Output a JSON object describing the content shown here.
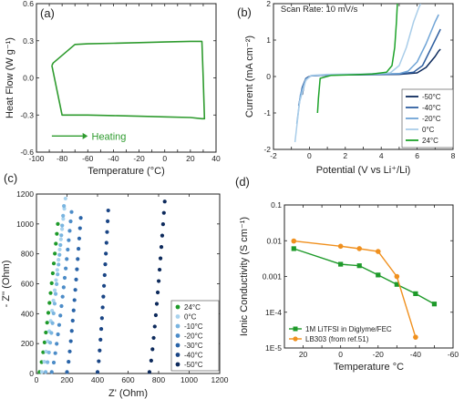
{
  "chart_data": [
    {
      "id": "a",
      "panel_label": "(a)",
      "type": "line",
      "xlabel": "Temperature (°C)",
      "ylabel": "Heat Flow (W g⁻¹)",
      "xlim": [
        -100,
        40
      ],
      "ylim": [
        -0.6,
        0.6
      ],
      "x_ticks": [
        -100,
        -90,
        -80,
        -70,
        -60,
        -50,
        -40,
        -30,
        -20,
        -10,
        0,
        10,
        20,
        30,
        40
      ],
      "y_ticks": [
        -0.6,
        -0.3,
        0.0,
        0.3,
        0.6
      ],
      "y_tick_labels": [
        "-0.6",
        "-0.3",
        "0.0",
        "0.3",
        "0.6"
      ],
      "color": "#2e9b2e",
      "annotation": "Heating",
      "series": [
        {
          "x": [
            -88,
            -87,
            -70,
            -60,
            -40,
            -20,
            0,
            20,
            29,
            30,
            31,
            29,
            20,
            0,
            -20,
            -40,
            -60,
            -80,
            -88
          ],
          "y": [
            0.1,
            0.12,
            0.27,
            0.275,
            0.28,
            0.285,
            0.29,
            0.295,
            0.295,
            0.0,
            -0.33,
            -0.33,
            -0.32,
            -0.315,
            -0.31,
            -0.305,
            -0.3,
            -0.3,
            0.1
          ]
        }
      ]
    },
    {
      "id": "b",
      "panel_label": "(b)",
      "type": "line",
      "xlabel": "Potential (V vs Li⁺/Li)",
      "ylabel": "Current (mA cm⁻²)",
      "xlim": [
        -2,
        8
      ],
      "ylim": [
        -2,
        2
      ],
      "x_ticks": [
        -2,
        0,
        2,
        4,
        6,
        8
      ],
      "y_ticks": [
        -2,
        -1,
        0,
        1,
        2
      ],
      "annotation": "Scan Rate: 10 mV/s",
      "legend_position": "bottom-right",
      "series": [
        {
          "name": "-50°C",
          "color": "#0d2a5c",
          "x": [
            -0.4,
            -0.25,
            -0.1,
            0.1,
            1,
            3,
            5,
            6,
            6.5,
            7,
            7.2,
            7.3
          ],
          "y": [
            -0.5,
            -0.15,
            -0.02,
            0.02,
            0.04,
            0.05,
            0.06,
            0.1,
            0.25,
            0.55,
            0.7,
            0.75
          ]
        },
        {
          "name": "-40°C",
          "color": "#2f5fa0",
          "x": [
            -0.6,
            -0.4,
            -0.2,
            0.1,
            1,
            3,
            5,
            5.8,
            6.3,
            6.8,
            7.1,
            7.3
          ],
          "y": [
            -0.8,
            -0.3,
            -0.05,
            0.02,
            0.04,
            0.05,
            0.07,
            0.12,
            0.3,
            0.8,
            1.1,
            1.3
          ]
        },
        {
          "name": "-20°C",
          "color": "#6fa4d6",
          "x": [
            -0.7,
            -0.5,
            -0.2,
            0.1,
            1,
            3,
            5,
            5.5,
            6,
            6.5,
            7,
            7.2
          ],
          "y": [
            -1.3,
            -0.5,
            -0.08,
            0.02,
            0.05,
            0.06,
            0.08,
            0.15,
            0.4,
            0.9,
            1.5,
            1.7
          ]
        },
        {
          "name": "0°C",
          "color": "#a9cde9",
          "x": [
            -0.8,
            -0.55,
            -0.2,
            0.1,
            1,
            3,
            4.5,
            5,
            5.4,
            5.8,
            6.1,
            6.2
          ],
          "y": [
            -1.8,
            -0.7,
            -0.1,
            0.03,
            0.06,
            0.07,
            0.1,
            0.3,
            0.8,
            1.5,
            1.9,
            2.0
          ]
        },
        {
          "name": "24°C",
          "color": "#1ea32a",
          "x": [
            0.45,
            0.5,
            0.6,
            1.2,
            2.5,
            3.5,
            4.3,
            4.6,
            4.75,
            4.85,
            4.9
          ],
          "y": [
            -1.0,
            -0.6,
            -0.05,
            0.03,
            0.05,
            0.07,
            0.12,
            0.3,
            0.8,
            1.5,
            2.0
          ]
        }
      ]
    },
    {
      "id": "c",
      "panel_label": "(c)",
      "type": "scatter",
      "xlabel": "Z' (Ohm)",
      "ylabel": "- Z'' (Ohm)",
      "xlim": [
        0,
        1200
      ],
      "ylim": [
        0,
        1200
      ],
      "x_ticks": [
        0,
        200,
        400,
        600,
        800,
        1000,
        1200
      ],
      "y_ticks": [
        0,
        200,
        400,
        600,
        800,
        1000,
        1200
      ],
      "legend_position": "bottom-right",
      "series": [
        {
          "name": "24°C",
          "color": "#1e9a2a",
          "x_base": 20,
          "x_top": 140,
          "y_max": 1000,
          "n": 16
        },
        {
          "name": "0°C",
          "color": "#a9d3ee",
          "x_base": 35,
          "x_top": 190,
          "y_max": 1170,
          "n": 18
        },
        {
          "name": "-10°C",
          "color": "#7ab5e0",
          "x_base": 60,
          "x_top": 180,
          "y_max": 1120,
          "n": 18
        },
        {
          "name": "-20°C",
          "color": "#4c8cc8",
          "x_base": 100,
          "x_top": 230,
          "y_max": 1080,
          "n": 18
        },
        {
          "name": "-30°C",
          "color": "#2a64a8",
          "x_base": 200,
          "x_top": 290,
          "y_max": 1040,
          "n": 16
        },
        {
          "name": "-40°C",
          "color": "#1a4585",
          "x_base": 400,
          "x_top": 470,
          "y_max": 1090,
          "n": 16
        },
        {
          "name": "-50°C",
          "color": "#0d2a5c",
          "x_base": 740,
          "x_top": 840,
          "y_max": 1150,
          "n": 16
        }
      ]
    },
    {
      "id": "d",
      "panel_label": "(d)",
      "type": "line",
      "xlabel": "Temperature °C",
      "ylabel": "Ionic Conductivity (S cm⁻¹)",
      "x_reversed": true,
      "xlim": [
        30,
        -60
      ],
      "ylim_log": [
        -5,
        -1
      ],
      "x_ticks": [
        20,
        0,
        -20,
        -40,
        -60
      ],
      "y_tick_labels": [
        "0.1",
        "0.01",
        "0.001",
        "1E-4",
        "1E-5"
      ],
      "y_tick_values": [
        0.1,
        0.01,
        0.001,
        0.0001,
        1e-05
      ],
      "legend_position": "bottom-left",
      "series": [
        {
          "name": "1M LiTFSI in Diglyme/FEC",
          "color": "#1e9a2a",
          "marker": "square",
          "x": [
            25,
            0,
            -10,
            -20,
            -30,
            -40,
            -50
          ],
          "y": [
            0.006,
            0.0022,
            0.002,
            0.0011,
            0.0006,
            0.00033,
            0.00017
          ]
        },
        {
          "name": "LB303 (from ref.51)",
          "color": "#f0901e",
          "marker": "circle",
          "x": [
            25,
            0,
            -10,
            -20,
            -30,
            -40
          ],
          "y": [
            0.0098,
            0.007,
            0.006,
            0.005,
            0.001,
            2e-05
          ]
        }
      ]
    }
  ]
}
